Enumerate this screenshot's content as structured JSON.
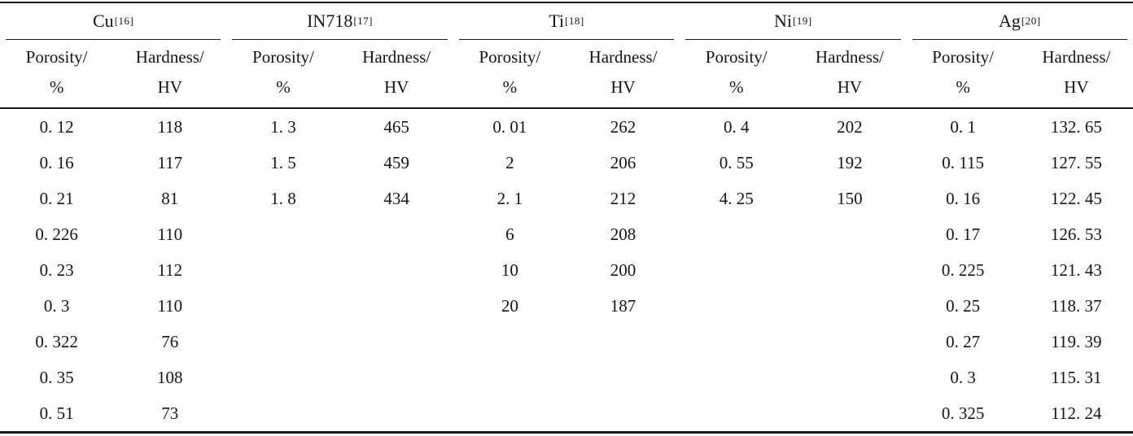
{
  "table": {
    "column_headers": {
      "porosity_top": "Porosity/",
      "porosity_bottom": "%",
      "hardness_top": "Hardness/",
      "hardness_bottom": "HV"
    },
    "max_rows": 9,
    "groups": [
      {
        "material": "Cu",
        "reference": "[16]",
        "rows": [
          {
            "porosity": "0. 12",
            "hardness": "118"
          },
          {
            "porosity": "0. 16",
            "hardness": "117"
          },
          {
            "porosity": "0. 21",
            "hardness": "81"
          },
          {
            "porosity": "0. 226",
            "hardness": "110"
          },
          {
            "porosity": "0. 23",
            "hardness": "112"
          },
          {
            "porosity": "0. 3",
            "hardness": "110"
          },
          {
            "porosity": "0. 322",
            "hardness": "76"
          },
          {
            "porosity": "0. 35",
            "hardness": "108"
          },
          {
            "porosity": "0. 51",
            "hardness": "73"
          }
        ]
      },
      {
        "material": "IN718",
        "reference": "[17]",
        "rows": [
          {
            "porosity": "1. 3",
            "hardness": "465"
          },
          {
            "porosity": "1. 5",
            "hardness": "459"
          },
          {
            "porosity": "1. 8",
            "hardness": "434"
          }
        ]
      },
      {
        "material": "Ti",
        "reference": "[18]",
        "rows": [
          {
            "porosity": "0. 01",
            "hardness": "262"
          },
          {
            "porosity": "2",
            "hardness": "206"
          },
          {
            "porosity": "2. 1",
            "hardness": "212"
          },
          {
            "porosity": "6",
            "hardness": "208"
          },
          {
            "porosity": "10",
            "hardness": "200"
          },
          {
            "porosity": "20",
            "hardness": "187"
          }
        ]
      },
      {
        "material": "Ni",
        "reference": "[19]",
        "rows": [
          {
            "porosity": "0. 4",
            "hardness": "202"
          },
          {
            "porosity": "0. 55",
            "hardness": "192"
          },
          {
            "porosity": "4. 25",
            "hardness": "150"
          }
        ]
      },
      {
        "material": "Ag",
        "reference": "[20]",
        "rows": [
          {
            "porosity": "0. 1",
            "hardness": "132. 65"
          },
          {
            "porosity": "0. 115",
            "hardness": "127. 55"
          },
          {
            "porosity": "0. 16",
            "hardness": "122. 45"
          },
          {
            "porosity": "0. 17",
            "hardness": "126. 53"
          },
          {
            "porosity": "0. 225",
            "hardness": "121. 43"
          },
          {
            "porosity": "0. 25",
            "hardness": "118. 37"
          },
          {
            "porosity": "0. 27",
            "hardness": "119. 39"
          },
          {
            "porosity": "0. 3",
            "hardness": "115. 31"
          },
          {
            "porosity": "0. 325",
            "hardness": "112. 24"
          }
        ]
      }
    ],
    "colors": {
      "text": "#141414",
      "rule": "#1a1a1a",
      "background": "#ffffff"
    }
  }
}
